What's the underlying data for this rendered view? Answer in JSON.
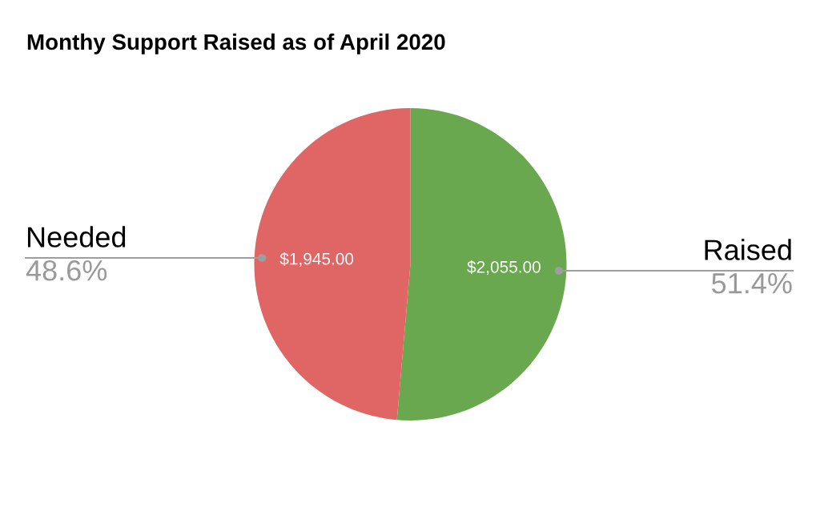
{
  "chart_data": {
    "type": "pie",
    "title": "Monthy Support Raised as of April 2020",
    "categories": [
      "Raised",
      "Needed"
    ],
    "values": [
      2055,
      1945
    ],
    "colors": [
      "#6aa84f",
      "#e06666"
    ],
    "value_labels": [
      "$2,055.00",
      "$1,945.00"
    ],
    "annotations": [
      "51.4%",
      "48.6%"
    ]
  }
}
